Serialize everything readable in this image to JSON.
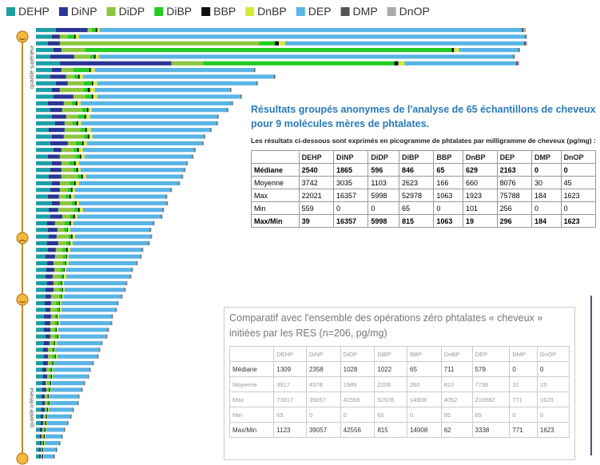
{
  "chart_data": {
    "type": "bar",
    "orientation": "horizontal",
    "stacked": true,
    "axis_labels": [
      "quartile supérieur",
      "quartile inférieur"
    ],
    "series": [
      {
        "name": "DEHP",
        "color": "#1e9fa6",
        "values": [
          25,
          20,
          15,
          22,
          18,
          30,
          20,
          18,
          25,
          20,
          22,
          15,
          18,
          20,
          24,
          16,
          20,
          18,
          22,
          15,
          20,
          18,
          16,
          20,
          18,
          15,
          20,
          16,
          18,
          14,
          15,
          16,
          14,
          15,
          12,
          14,
          13,
          12,
          14,
          12,
          12,
          11,
          12,
          10,
          11,
          10,
          12,
          10,
          9,
          10,
          9,
          8,
          9,
          8,
          8,
          7,
          8,
          7,
          6,
          6,
          5,
          5,
          5,
          4,
          4
        ]
      },
      {
        "name": "DiNP",
        "color": "#2b3595",
        "values": [
          40,
          10,
          15,
          10,
          30,
          140,
          12,
          20,
          15,
          10,
          25,
          20,
          15,
          18,
          12,
          20,
          15,
          22,
          10,
          15,
          12,
          14,
          16,
          10,
          12,
          14,
          10,
          12,
          15,
          10,
          12,
          10,
          14,
          10,
          12,
          8,
          10,
          9,
          8,
          10,
          7,
          8,
          6,
          9,
          7,
          8,
          6,
          7,
          6,
          5,
          6,
          5,
          5,
          4,
          5,
          4,
          3,
          4,
          3,
          3,
          3,
          2,
          2,
          2,
          2
        ]
      },
      {
        "name": "DiDP",
        "color": "#8cc63f",
        "values": [
          5,
          10,
          250,
          30,
          20,
          40,
          15,
          10,
          20,
          30,
          15,
          10,
          25,
          15,
          10,
          20,
          25,
          10,
          15,
          20,
          10,
          15,
          20,
          12,
          10,
          8,
          15,
          20,
          10,
          12,
          8,
          15,
          10,
          8,
          10,
          12,
          8,
          10,
          6,
          8,
          10,
          6,
          8,
          5,
          6,
          5,
          6,
          4,
          5,
          6,
          4,
          4,
          3,
          4,
          2,
          3,
          3,
          2,
          3,
          2,
          2,
          2,
          1,
          1,
          1
        ]
      },
      {
        "name": "DiBP",
        "color": "#22cc22",
        "values": [
          5,
          8,
          20,
          460,
          5,
          240,
          20,
          5,
          10,
          5,
          8,
          5,
          6,
          8,
          5,
          6,
          5,
          8,
          5,
          5,
          6,
          4,
          5,
          6,
          4,
          5,
          4,
          5,
          4,
          6,
          4,
          3,
          4,
          5,
          4,
          3,
          4,
          3,
          4,
          3,
          3,
          4,
          3,
          2,
          3,
          2,
          3,
          2,
          2,
          3,
          2,
          2,
          2,
          2,
          2,
          1,
          2,
          1,
          1,
          1,
          1,
          1,
          1,
          1,
          1
        ]
      },
      {
        "name": "BBP",
        "color": "#111111",
        "values": [
          2,
          2,
          5,
          3,
          2,
          5,
          2,
          2,
          2,
          3,
          2,
          2,
          2,
          2,
          2,
          2,
          2,
          2,
          2,
          2,
          2,
          2,
          2,
          2,
          2,
          2,
          2,
          2,
          2,
          2,
          1,
          2,
          1,
          2,
          1,
          1,
          1,
          1,
          1,
          1,
          1,
          1,
          1,
          1,
          1,
          1,
          1,
          1,
          1,
          1,
          1,
          1,
          1,
          1,
          1,
          1,
          1,
          1,
          1,
          1,
          1,
          1,
          1,
          1,
          1
        ]
      },
      {
        "name": "DnBP",
        "color": "#d4e83a",
        "values": [
          3,
          4,
          8,
          6,
          4,
          8,
          5,
          4,
          5,
          6,
          5,
          4,
          4,
          5,
          4,
          5,
          4,
          4,
          5,
          4,
          4,
          3,
          4,
          4,
          3,
          4,
          3,
          4,
          3,
          3,
          3,
          3,
          3,
          3,
          2,
          3,
          2,
          3,
          2,
          2,
          2,
          2,
          2,
          2,
          2,
          2,
          2,
          2,
          1,
          2,
          1,
          1,
          1,
          1,
          1,
          1,
          1,
          1,
          1,
          1,
          1,
          1,
          1,
          1,
          1
        ]
      },
      {
        "name": "DEP",
        "color": "#5ab4e6",
        "values": [
          530,
          560,
          300,
          75,
          520,
          140,
          200,
          240,
          200,
          170,
          180,
          190,
          170,
          160,
          170,
          150,
          140,
          145,
          140,
          135,
          135,
          130,
          120,
          125,
          120,
          115,
          110,
          100,
          105,
          100,
          100,
          95,
          95,
          90,
          90,
          85,
          82,
          80,
          78,
          75,
          72,
          70,
          68,
          66,
          64,
          62,
          58,
          56,
          55,
          50,
          48,
          46,
          44,
          40,
          38,
          36,
          34,
          30,
          28,
          25,
          22,
          20,
          18,
          15,
          12
        ]
      },
      {
        "name": "DMP",
        "color": "#555555",
        "values": [
          2,
          1,
          2,
          1,
          1,
          2,
          1,
          1,
          1,
          1,
          1,
          1,
          1,
          1,
          1,
          1,
          1,
          1,
          1,
          1,
          1,
          1,
          1,
          1,
          1,
          1,
          1,
          1,
          1,
          1,
          1,
          1,
          1,
          1,
          1,
          1,
          1,
          1,
          1,
          1,
          1,
          1,
          1,
          1,
          1,
          1,
          1,
          1,
          1,
          1,
          1,
          1,
          1,
          1,
          1,
          1,
          1,
          1,
          1,
          1,
          1,
          1,
          1,
          1,
          1
        ]
      },
      {
        "name": "DnOP",
        "color": "#aaaaaa",
        "values": [
          3,
          2,
          2,
          1,
          2,
          2,
          1,
          1,
          1,
          1,
          1,
          1,
          1,
          1,
          1,
          1,
          1,
          1,
          1,
          1,
          1,
          1,
          1,
          1,
          1,
          1,
          1,
          1,
          1,
          1,
          1,
          1,
          1,
          1,
          1,
          1,
          1,
          1,
          1,
          1,
          1,
          1,
          1,
          1,
          1,
          1,
          1,
          1,
          1,
          1,
          1,
          1,
          1,
          1,
          1,
          1,
          1,
          1,
          1,
          1,
          1,
          1,
          1,
          1,
          1
        ]
      }
    ]
  },
  "table1": {
    "title": "Résultats groupés anonymes de l'analyse de 65 échantillons de cheveux pour 9 molécules mères de phtalates.",
    "subtitle": "Les résultats ci-dessous sont exprimés en picogramme de phtalates par milligramme de cheveux (pg/mg) :",
    "columns": [
      "DEHP",
      "DiNP",
      "DiDP",
      "DiBP",
      "BBP",
      "DnBP",
      "DEP",
      "DMP",
      "DnOP"
    ],
    "rows": [
      {
        "label": "Médiane",
        "cells": [
          2540,
          1865,
          596,
          846,
          65,
          629,
          2163,
          0,
          0
        ]
      },
      {
        "label": "Moyenne",
        "cells": [
          3742,
          3035,
          1103,
          2623,
          166,
          660,
          8076,
          30,
          45
        ]
      },
      {
        "label": "Max",
        "cells": [
          22021,
          16357,
          5998,
          52978,
          1063,
          1923,
          75788,
          184,
          1623
        ]
      },
      {
        "label": "Min",
        "cells": [
          559,
          0,
          0,
          65,
          0,
          101,
          256,
          0,
          0
        ]
      },
      {
        "label": "Max/Min",
        "cells": [
          39,
          16357,
          5998,
          815,
          1063,
          19,
          296,
          184,
          1623
        ]
      }
    ]
  },
  "table2": {
    "title": "Comparatif avec l'ensemble des opérations zéro phtalates « cheveux » initiées par les RES (n=206, pg/mg)",
    "columns": [
      "DEHP",
      "DiNP",
      "DiDP",
      "DiBP",
      "BBP",
      "DnBP",
      "DEP",
      "DMP",
      "DnOP"
    ],
    "rows": [
      {
        "label": "Médiane",
        "cells": [
          1309,
          2358,
          1028,
          1022,
          65,
          711,
          579,
          0,
          0
        ]
      },
      {
        "label": "Moyenne",
        "cells": [
          3917,
          4378,
          1989,
          2208,
          260,
          810,
          7738,
          31,
          15
        ]
      },
      {
        "label": "Max",
        "cells": [
          73017,
          39057,
          42556,
          52978,
          14908,
          4052,
          216982,
          771,
          1623
        ]
      },
      {
        "label": "Min",
        "cells": [
          65,
          0,
          0,
          65,
          0,
          65,
          65,
          0,
          0
        ]
      },
      {
        "label": "Max/Min",
        "cells": [
          1123,
          39057,
          42556,
          815,
          14908,
          62,
          3338,
          771,
          1623
        ]
      }
    ]
  }
}
